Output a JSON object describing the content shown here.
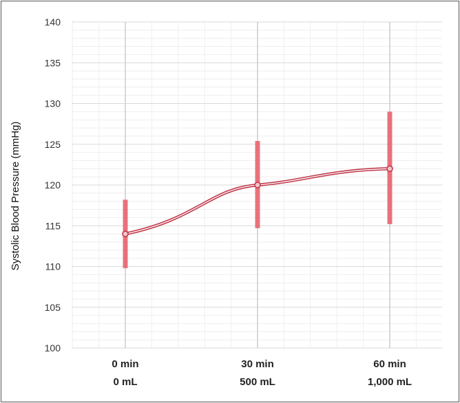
{
  "chart_data": {
    "type": "line",
    "title": "",
    "ylabel": "Systolic Blood Pressure (mmHg)",
    "xlabel": "",
    "ylim": [
      100,
      140
    ],
    "yticks": [
      100,
      105,
      110,
      115,
      120,
      125,
      130,
      135,
      140
    ],
    "y_minor_step": 1,
    "grid": true,
    "categories": [
      {
        "line1": "0 min",
        "line2": "0 mL"
      },
      {
        "line1": "30 min",
        "line2": "500 mL"
      },
      {
        "line1": "60 min",
        "line2": "1,000 mL"
      }
    ],
    "series": [
      {
        "values": [
          114,
          120,
          122
        ],
        "error_low": [
          109.8,
          114.7,
          115.2
        ],
        "error_high": [
          118.2,
          125.4,
          129
        ]
      }
    ],
    "colors": {
      "line": "#c0394b",
      "error_bar": "#e8646e",
      "grid_major": "#d9d9d9",
      "grid_minor": "#eeeeee"
    }
  }
}
